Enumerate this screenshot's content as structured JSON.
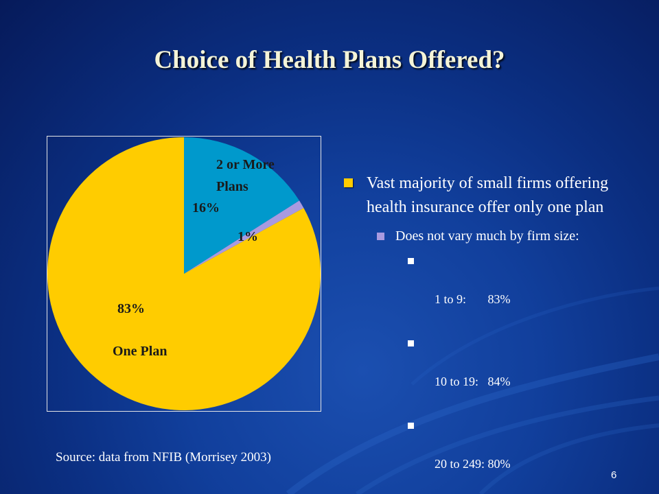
{
  "slide": {
    "title": "Choice of Health Plans Offered?",
    "source": "Source: data from NFIB (Morrisey 2003)",
    "page_number": "6"
  },
  "chart_data": {
    "type": "pie",
    "title": "",
    "slices": [
      {
        "label": "2 or More Plans",
        "value": 16,
        "value_label": "16%",
        "color": "#0099cc"
      },
      {
        "label": "",
        "value": 1,
        "value_label": "1%",
        "color": "#a99ae0"
      },
      {
        "label": "One Plan",
        "value": 83,
        "value_label": "83%",
        "color": "#ffcc00"
      }
    ],
    "start_angle_deg": 0,
    "direction": "clockwise",
    "label_lines": {
      "two_or_more_line1": "2 or More",
      "two_or_more_line2": "Plans",
      "one_plan": "One Plan"
    }
  },
  "bullets": {
    "main": "Vast majority of small firms offering health insurance offer only one plan",
    "sub": "Does not vary much by firm size:",
    "items": [
      "1 to 9:       83%",
      "10 to 19:   84%",
      "20 to 249: 80%"
    ]
  },
  "colors": {
    "background": "#0b2f82",
    "title": "#f4f4d8",
    "bullet_level1": "#ffcc00",
    "bullet_level2": "#a99ae0",
    "bullet_level3": "#ffffff"
  }
}
